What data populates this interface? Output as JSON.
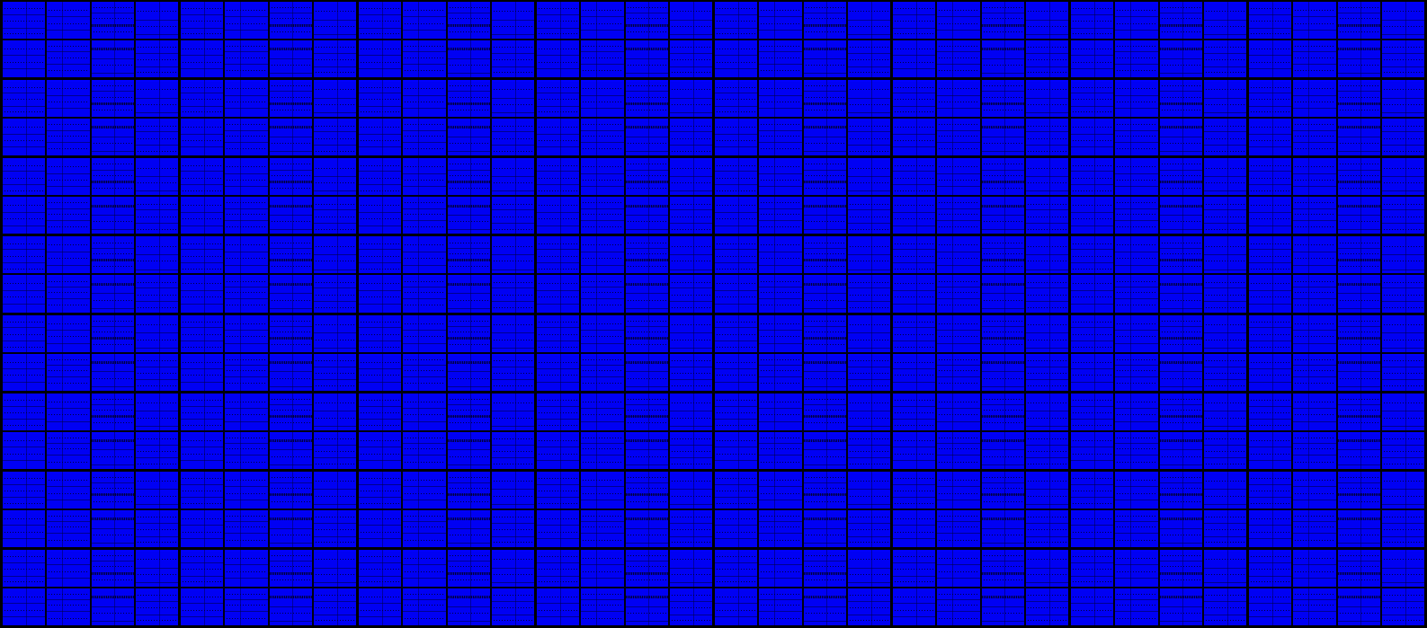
{
  "screen": {
    "label": "",
    "colors": {
      "background": "#000000",
      "panel": "#0000f4",
      "panel_header": "#0000ff",
      "line": "#000032"
    },
    "grid": {
      "tile_rows": 8,
      "tile_cols": 8,
      "panel_rows_per_tile": 2,
      "panel_cols_per_tile": 4
    }
  }
}
